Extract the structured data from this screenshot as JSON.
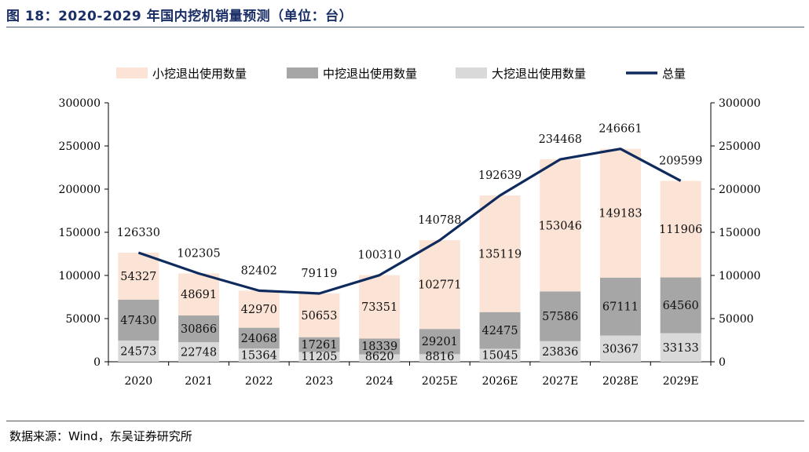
{
  "title": "图 18：2020-2029 年国内挖机销量预测（单位：台）",
  "source": "数据来源：Wind，东吴证券研究所",
  "colors": {
    "small": "#fbe3d6",
    "mid": "#a6a6a6",
    "large": "#d9d9d9",
    "total": "#0f2a5c"
  },
  "chart_data": {
    "type": "bar",
    "stacked": true,
    "title": "2020-2029 年国内挖机销量预测（单位：台）",
    "categories": [
      "2020",
      "2021",
      "2022",
      "2023",
      "2024",
      "2025E",
      "2026E",
      "2027E",
      "2028E",
      "2029E"
    ],
    "series": [
      {
        "name": "大挖退出使用数量",
        "type": "bar",
        "values": [
          24573,
          22748,
          15364,
          11205,
          8620,
          8816,
          15045,
          23836,
          30367,
          33133
        ]
      },
      {
        "name": "中挖退出使用数量",
        "type": "bar",
        "values": [
          47430,
          30866,
          24068,
          17261,
          18339,
          29201,
          42475,
          57586,
          67111,
          64560
        ]
      },
      {
        "name": "小挖退出使用数量",
        "type": "bar",
        "values": [
          54327,
          48691,
          42970,
          50653,
          73351,
          102771,
          135119,
          153046,
          149183,
          111906
        ]
      },
      {
        "name": "总量",
        "type": "line",
        "values": [
          126330,
          102305,
          82402,
          79119,
          100310,
          140788,
          192639,
          234468,
          246661,
          209599
        ]
      }
    ],
    "legend": [
      "小挖退出使用数量",
      "中挖退出使用数量",
      "大挖退出使用数量",
      "总量"
    ],
    "yticks": [
      "0",
      "50000",
      "100000",
      "150000",
      "200000",
      "250000",
      "300000"
    ],
    "ylim": [
      0,
      300000
    ],
    "y2lim": [
      0,
      300000
    ],
    "legend_position": "top"
  }
}
